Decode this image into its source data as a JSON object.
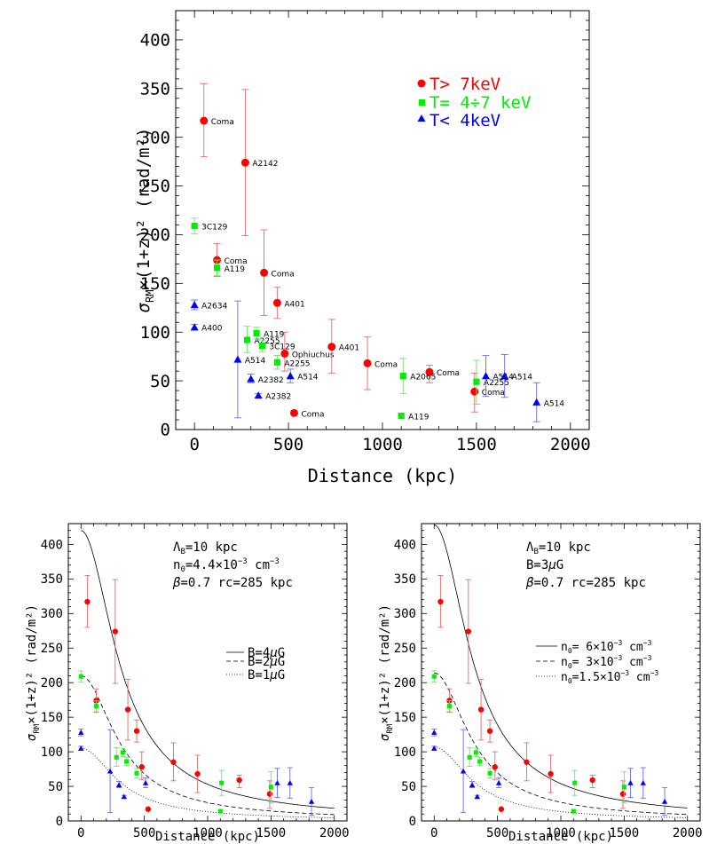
{
  "chart_data": [
    {
      "type": "scatter",
      "xlabel": "Distance (kpc)",
      "ylabel": "σ_RM×(1+z)² (rad/m²)",
      "xlim": [
        -100,
        2100
      ],
      "ylim": [
        0,
        430
      ],
      "xticks": [
        0,
        500,
        1000,
        1500,
        2000
      ],
      "yticks": [
        0,
        50,
        100,
        150,
        200,
        250,
        300,
        350,
        400
      ],
      "legend_position": "top-right",
      "legend": [
        "T> 7keV",
        "T= 4÷7 keV",
        "T< 4keV"
      ],
      "series": [
        {
          "name": "T> 7keV",
          "marker": "circle",
          "color": "#ff0000",
          "points": [
            {
              "x": 50,
              "y": 317,
              "lo": 280,
              "hi": 355,
              "label": "Coma"
            },
            {
              "x": 270,
              "y": 274,
              "lo": 199,
              "hi": 349,
              "label": "A2142"
            },
            {
              "x": 120,
              "y": 174,
              "lo": 157,
              "hi": 191,
              "label": "Coma"
            },
            {
              "x": 370,
              "y": 161,
              "lo": 117,
              "hi": 205,
              "label": "Coma"
            },
            {
              "x": 440,
              "y": 130,
              "lo": 114,
              "hi": 146,
              "label": "A401"
            },
            {
              "x": 480,
              "y": 78,
              "lo": 60,
              "hi": 100,
              "label": "Ophiuchus"
            },
            {
              "x": 730,
              "y": 85,
              "lo": 58,
              "hi": 113,
              "label": "A401"
            },
            {
              "x": 920,
              "y": 68,
              "lo": 41,
              "hi": 95,
              "label": "Coma"
            },
            {
              "x": 1250,
              "y": 59,
              "lo": 48,
              "hi": 66,
              "label": "Coma"
            },
            {
              "x": 530,
              "y": 17,
              "lo": 17,
              "hi": 17,
              "label": "Coma"
            },
            {
              "x": 1490,
              "y": 39,
              "lo": 18,
              "hi": 58,
              "label": "Coma"
            }
          ]
        },
        {
          "name": "T= 4÷7 keV",
          "marker": "square",
          "color": "#00ee00",
          "points": [
            {
              "x": 0,
              "y": 209,
              "lo": 201,
              "hi": 217,
              "label": "3C129"
            },
            {
              "x": 120,
              "y": 166,
              "lo": 158,
              "hi": 174,
              "label": "A119"
            },
            {
              "x": 280,
              "y": 92,
              "lo": 79,
              "hi": 106,
              "label": "A2255"
            },
            {
              "x": 330,
              "y": 99,
              "lo": 93,
              "hi": 105,
              "label": "A119"
            },
            {
              "x": 360,
              "y": 86,
              "lo": 80,
              "hi": 92,
              "label": "3C129"
            },
            {
              "x": 440,
              "y": 69,
              "lo": 62,
              "hi": 76,
              "label": "A2255"
            },
            {
              "x": 1110,
              "y": 55,
              "lo": 37,
              "hi": 73,
              "label": "A2065"
            },
            {
              "x": 1100,
              "y": 14,
              "lo": 14,
              "hi": 14,
              "label": "A119"
            },
            {
              "x": 1500,
              "y": 49,
              "lo": 26,
              "hi": 71,
              "label": "A2255"
            }
          ]
        },
        {
          "name": "T< 4keV",
          "marker": "triangle",
          "color": "#0000ff",
          "points": [
            {
              "x": 0,
              "y": 128,
              "lo": 123,
              "hi": 133,
              "label": "A2634"
            },
            {
              "x": 0,
              "y": 105,
              "lo": 102,
              "hi": 108,
              "label": "A400"
            },
            {
              "x": 230,
              "y": 72,
              "lo": 12,
              "hi": 132,
              "label": "A514"
            },
            {
              "x": 300,
              "y": 52,
              "lo": 48,
              "hi": 57,
              "label": "A2382"
            },
            {
              "x": 340,
              "y": 35,
              "lo": 33,
              "hi": 37,
              "label": "A2382"
            },
            {
              "x": 510,
              "y": 55,
              "lo": 48,
              "hi": 62,
              "label": "A514"
            },
            {
              "x": 1550,
              "y": 55,
              "lo": 34,
              "hi": 76,
              "label": "A514"
            },
            {
              "x": 1650,
              "y": 55,
              "lo": 33,
              "hi": 77,
              "label": "A514"
            },
            {
              "x": 1820,
              "y": 28,
              "lo": 8,
              "hi": 48,
              "label": "A514"
            }
          ]
        }
      ]
    },
    {
      "type": "scatter",
      "xlabel": "Distance (kpc)",
      "ylabel": "σ_RM×(1+z)² (rad/m²)",
      "xlim": [
        -100,
        2100
      ],
      "ylim": [
        0,
        430
      ],
      "xticks": [
        0,
        500,
        1000,
        1500,
        2000
      ],
      "yticks": [
        0,
        50,
        100,
        150,
        200,
        250,
        300,
        350,
        400
      ],
      "annotations": [
        "Λ_B=10 kpc",
        "n_0=4.4×10^-3 cm^-3",
        "β=0.7  rc=285 kpc"
      ],
      "model_legend": [
        "B=4μG",
        "B=2μG",
        "B=1μG"
      ],
      "model_peaks": [
        420,
        210,
        105
      ],
      "model_core_radius": 285,
      "points_from": "panel 1"
    },
    {
      "type": "scatter",
      "xlabel": "Distance (kpc)",
      "ylabel": "σ_RM×(1+z)² (rad/m²)",
      "xlim": [
        -100,
        2100
      ],
      "ylim": [
        0,
        430
      ],
      "xticks": [
        0,
        500,
        1000,
        1500,
        2000
      ],
      "yticks": [
        0,
        50,
        100,
        150,
        200,
        250,
        300,
        350,
        400
      ],
      "annotations": [
        "Λ_B=10 kpc",
        "B=3μG",
        "β=0.7  rc=285 kpc"
      ],
      "model_legend": [
        "n_0=  6×10^-3 cm^-3",
        "n_0=  3×10^-3 cm^-3",
        "n_0=1.5×10^-3 cm^-3"
      ],
      "model_peaks": [
        428,
        214,
        107
      ],
      "model_core_radius": 285,
      "points_from": "panel 1"
    }
  ]
}
